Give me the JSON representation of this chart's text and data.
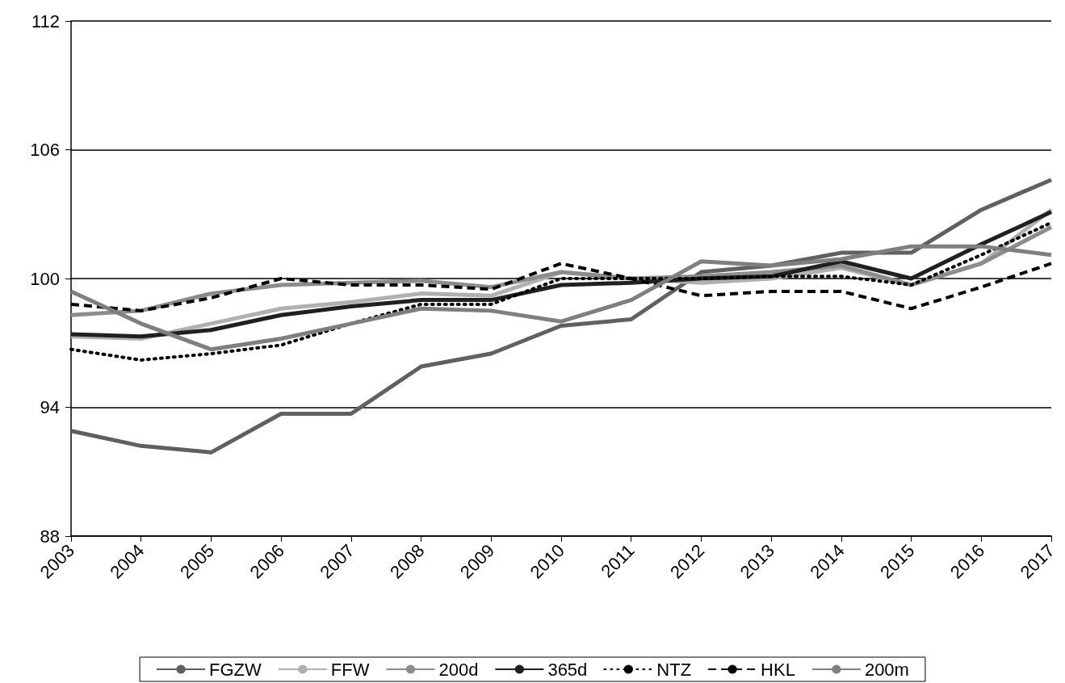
{
  "chart_data": {
    "type": "line",
    "categories": [
      "2003",
      "2004",
      "2005",
      "2006",
      "2007",
      "2008",
      "2009",
      "2010",
      "2011",
      "2012",
      "2013",
      "2014",
      "2015",
      "2016",
      "2017"
    ],
    "series": [
      {
        "name": "FGZW",
        "color": "#606060",
        "line_style": "solid",
        "values": [
          92.9,
          92.2,
          91.9,
          93.7,
          93.7,
          95.9,
          96.5,
          97.8,
          98.1,
          100.3,
          100.6,
          101.2,
          101.2,
          103.2,
          104.6
        ]
      },
      {
        "name": "FFW",
        "color": "#b0b0b0",
        "line_style": "solid",
        "values": [
          97.3,
          97.2,
          97.9,
          98.6,
          98.9,
          99.3,
          99.2,
          100.3,
          100.0,
          99.8,
          100.0,
          100.5,
          99.7,
          100.7,
          103.2
        ]
      },
      {
        "name": "200d",
        "color": "#8c8c8c",
        "line_style": "solid",
        "values": [
          98.3,
          98.5,
          99.3,
          99.7,
          99.8,
          99.9,
          99.6,
          100.3,
          100.0,
          100.1,
          100.3,
          100.6,
          99.7,
          100.7,
          102.4
        ]
      },
      {
        "name": "365d",
        "color": "#202020",
        "line_style": "solid",
        "values": [
          97.4,
          97.3,
          97.6,
          98.3,
          98.7,
          99.0,
          99.0,
          99.7,
          99.8,
          100.0,
          100.1,
          100.8,
          100.0,
          101.6,
          103.1
        ]
      },
      {
        "name": "NTZ",
        "color": "#000000",
        "line_style": "dotted",
        "values": [
          96.7,
          96.2,
          96.5,
          96.9,
          97.9,
          98.8,
          98.8,
          100.0,
          100.0,
          100.0,
          100.1,
          100.1,
          99.7,
          101.1,
          102.6
        ]
      },
      {
        "name": "HKL",
        "color": "#000000",
        "line_style": "dashed",
        "values": [
          98.8,
          98.5,
          99.1,
          100.0,
          99.7,
          99.7,
          99.5,
          100.7,
          100.0,
          99.2,
          99.4,
          99.4,
          98.6,
          99.6,
          100.7
        ]
      },
      {
        "name": "200m",
        "color": "#7f7f7f",
        "line_style": "solid",
        "values": [
          99.4,
          97.9,
          96.7,
          97.2,
          97.9,
          98.6,
          98.5,
          98.0,
          99.0,
          100.8,
          100.6,
          100.9,
          101.5,
          101.5,
          101.1
        ]
      }
    ],
    "ylim": [
      88,
      112
    ],
    "yticks": [
      88,
      94,
      100,
      106,
      112
    ],
    "grid": "y",
    "legend": "bottom",
    "marker": "none"
  }
}
